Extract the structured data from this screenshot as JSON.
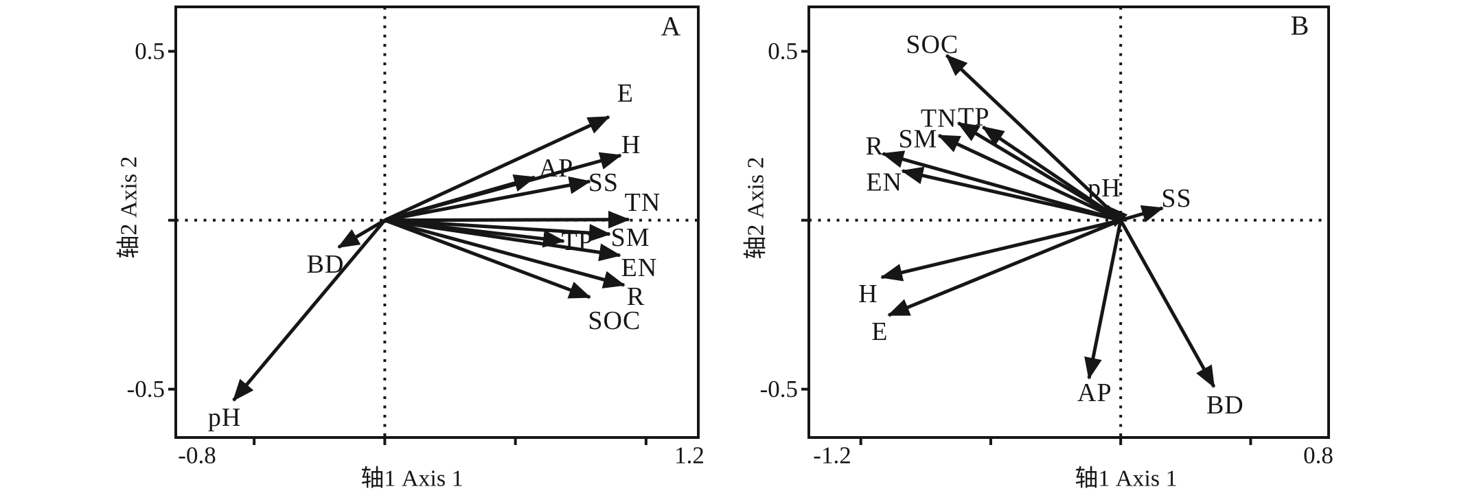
{
  "colors": {
    "ink": "#161616",
    "background": "#ffffff"
  },
  "chart_data": [
    {
      "type": "biplot-vector",
      "panel_label": "A",
      "xlabel": "轴1 Axis 1",
      "ylabel": "轴2 Axis 2",
      "xlim": [
        -0.8,
        1.2
      ],
      "ylim": [
        -0.643,
        0.6315
      ],
      "grid": false,
      "legend": null,
      "origin_reference_lines": "dotted lines at x=0 and y=0",
      "xticks_labeled": [
        {
          "value": -0.8,
          "label": "-0.8"
        },
        {
          "value": 1.2,
          "label": "1.2"
        }
      ],
      "xticks_minor": [
        -0.5,
        0,
        0.5,
        1.0
      ],
      "yticks_labeled": [
        {
          "value": 0.5,
          "label": "0.5"
        },
        {
          "value": -0.5,
          "label": "-0.5"
        }
      ],
      "yticks_minor": [
        -0.5,
        0,
        0.5
      ],
      "arrows": [
        {
          "name": "E",
          "x": 0.858,
          "y": 0.306,
          "label_x": 0.921,
          "label_y": 0.375
        },
        {
          "name": "H",
          "x": 0.903,
          "y": 0.192,
          "label_x": 0.943,
          "label_y": 0.223
        },
        {
          "name": "AP",
          "x": 0.574,
          "y": 0.127,
          "label_x": 0.656,
          "label_y": 0.154
        },
        {
          "name": "SS",
          "x": 0.785,
          "y": 0.115,
          "label_x": 0.837,
          "label_y": 0.111
        },
        {
          "name": "TN",
          "x": 0.934,
          "y": 0.002,
          "label_x": 0.987,
          "label_y": 0.052
        },
        {
          "name": "SM",
          "x": 0.861,
          "y": -0.041,
          "label_x": 0.94,
          "label_y": -0.051
        },
        {
          "name": "TP",
          "x": 0.685,
          "y": -0.062,
          "label_x": 0.737,
          "label_y": -0.064
        },
        {
          "name": "EN",
          "x": 0.9,
          "y": -0.104,
          "label_x": 0.974,
          "label_y": -0.141
        },
        {
          "name": "R",
          "x": 0.916,
          "y": -0.192,
          "label_x": 0.961,
          "label_y": -0.226
        },
        {
          "name": "SOC",
          "x": 0.785,
          "y": -0.228,
          "label_x": 0.879,
          "label_y": -0.297
        },
        {
          "name": "BD",
          "x": -0.177,
          "y": -0.08,
          "label_x": -0.227,
          "label_y": -0.131
        },
        {
          "name": "pH",
          "x": -0.579,
          "y": -0.533,
          "label_x": -0.613,
          "label_y": -0.584
        }
      ]
    },
    {
      "type": "biplot-vector",
      "panel_label": "B",
      "xlabel": "轴1 Axis 1",
      "ylabel": "轴2 Axis 2",
      "xlim": [
        -1.2,
        0.8
      ],
      "ylim": [
        -0.643,
        0.6315
      ],
      "grid": false,
      "legend": null,
      "origin_reference_lines": "dotted lines at x=0 and y=0",
      "xticks_labeled": [
        {
          "value": -1.2,
          "label": "-1.2"
        },
        {
          "value": 0.8,
          "label": "0.8"
        }
      ],
      "xticks_minor": [
        -1.0,
        -0.5,
        0,
        0.5
      ],
      "yticks_labeled": [
        {
          "value": 0.5,
          "label": "0.5"
        },
        {
          "value": -0.5,
          "label": "-0.5"
        }
      ],
      "yticks_minor": [
        -0.5,
        0,
        0.5
      ],
      "arrows": [
        {
          "name": "SOC",
          "x": -0.67,
          "y": 0.488,
          "label_x": -0.725,
          "label_y": 0.52
        },
        {
          "name": "TN",
          "x": -0.625,
          "y": 0.288,
          "label_x": -0.7,
          "label_y": 0.301
        },
        {
          "name": "TP",
          "x": -0.53,
          "y": 0.276,
          "label_x": -0.565,
          "label_y": 0.305
        },
        {
          "name": "SM",
          "x": -0.7,
          "y": 0.251,
          "label_x": -0.78,
          "label_y": 0.24
        },
        {
          "name": "R",
          "x": -0.915,
          "y": 0.197,
          "label_x": -0.947,
          "label_y": 0.219
        },
        {
          "name": "EN",
          "x": -0.84,
          "y": 0.146,
          "label_x": -0.91,
          "label_y": 0.112
        },
        {
          "name": "pH",
          "x": -0.053,
          "y": 0.042,
          "label_x": -0.063,
          "label_y": 0.095
        },
        {
          "name": "SS",
          "x": 0.161,
          "y": 0.036,
          "label_x": 0.215,
          "label_y": 0.064
        },
        {
          "name": "H",
          "x": -0.92,
          "y": -0.169,
          "label_x": -0.972,
          "label_y": -0.218
        },
        {
          "name": "E",
          "x": -0.893,
          "y": -0.281,
          "label_x": -0.927,
          "label_y": -0.33
        },
        {
          "name": "AP",
          "x": -0.122,
          "y": -0.468,
          "label_x": -0.1,
          "label_y": -0.511
        },
        {
          "name": "BD",
          "x": 0.359,
          "y": -0.493,
          "label_x": 0.402,
          "label_y": -0.547
        }
      ]
    }
  ]
}
